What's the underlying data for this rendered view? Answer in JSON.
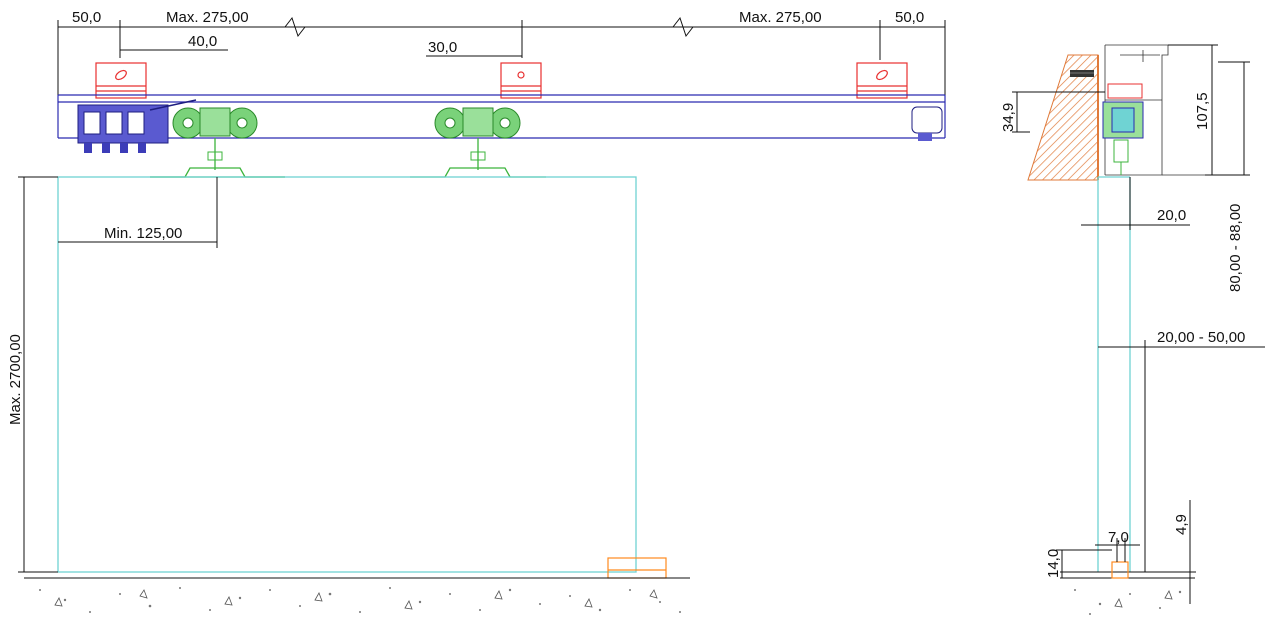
{
  "labels": {
    "end_left": "50,0",
    "span_left": "Max. 275,00",
    "bracket_left": "40,0",
    "bracket_mid": "30,0",
    "span_right": "Max. 275,00",
    "end_right": "50,0",
    "min_offset": "Min. 125,00",
    "door_height": "Max. 2700,00",
    "mount_height": "34,9",
    "profile_height": "107,5",
    "gap_width": "20,0",
    "top_gap": "80,00 - 88,00",
    "wall_gap": "20,00 - 50,00",
    "guide_width": "7,0",
    "guide_height": "14,0",
    "floor_gap": "4,9"
  },
  "colors": {
    "panel": "#6fd3d3",
    "rail": "#2a2ab0",
    "bracket": "#e83030",
    "roller": "#3cb43c",
    "guide": "#ff8a1e",
    "wall": "#e07a3a"
  }
}
